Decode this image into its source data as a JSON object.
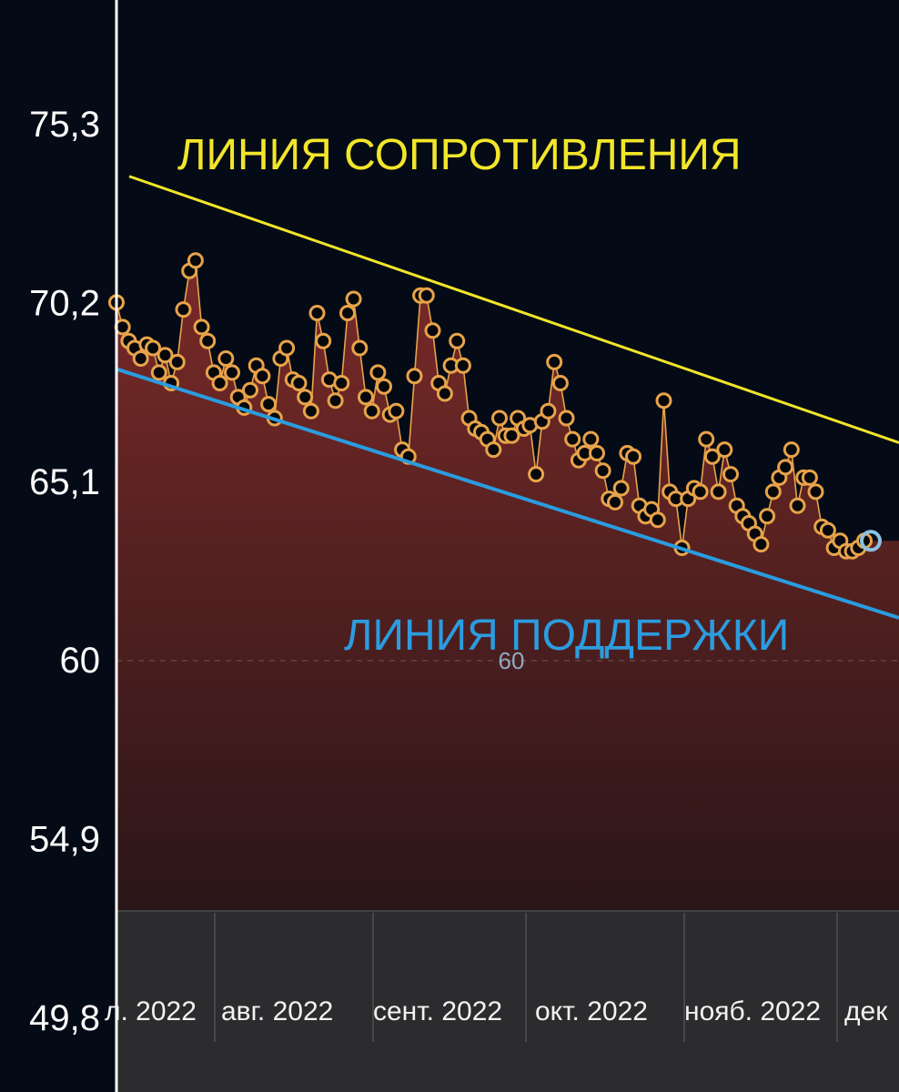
{
  "chart_data": {
    "type": "line",
    "y_ticks": [
      "75,3",
      "70,2",
      "65,1",
      "60",
      "54,9",
      "49,8"
    ],
    "y_tick_values": [
      75.3,
      70.2,
      65.1,
      60.0,
      54.9,
      49.8
    ],
    "reference_line": {
      "value": 60,
      "label": "60"
    },
    "x_labels": [
      "л. 2022",
      "авг. 2022",
      "сент. 2022",
      "окт. 2022",
      "нояб. 2022",
      "дек"
    ],
    "annotations": {
      "resistance": "ЛИНИЯ СОПРОТИВЛЕНИЯ",
      "support": "ЛИНИЯ ПОДДЕРЖКИ"
    },
    "trend_lines": {
      "resistance": {
        "start": 73.8,
        "end": 66.2
      },
      "support": {
        "start": 68.3,
        "end": 61.2
      }
    },
    "last_value": 63.4,
    "series": [
      {
        "values": [
          70.2,
          69.5,
          69.1,
          68.9,
          68.6,
          69.0,
          68.9,
          68.2,
          68.7,
          67.9,
          68.5,
          70.0,
          71.1,
          71.4,
          69.5,
          69.1,
          68.2,
          67.9,
          68.6,
          68.2,
          67.5,
          67.2,
          67.7,
          68.4,
          68.1,
          67.3,
          66.9,
          68.6,
          68.9,
          68.0,
          67.9,
          67.5,
          67.1,
          69.9,
          69.1,
          68.0,
          67.4,
          67.9,
          69.9,
          70.3,
          68.9,
          67.5,
          67.1,
          68.2,
          67.8,
          67.0,
          67.1,
          66.0,
          65.8,
          68.1,
          70.4,
          70.4,
          69.4,
          67.9,
          67.6,
          68.4,
          69.1,
          68.4,
          66.9,
          66.6,
          66.5,
          66.3,
          66.0,
          66.9,
          66.4,
          66.4,
          66.9,
          66.6,
          66.7,
          65.3,
          66.8,
          67.1,
          68.5,
          67.9,
          66.9,
          66.3,
          65.7,
          65.9,
          66.3,
          65.9,
          65.4,
          64.6,
          64.5,
          64.9,
          65.9,
          65.8,
          64.4,
          64.1,
          64.3,
          64.0,
          67.4,
          64.8,
          64.6,
          63.2,
          64.6,
          64.9,
          64.8,
          66.3,
          65.8,
          64.8,
          66.0,
          65.3,
          64.4,
          64.1,
          63.9,
          63.6,
          63.3,
          64.1,
          64.8,
          65.2,
          65.5,
          66.0,
          64.4,
          65.2,
          65.2,
          64.8,
          63.8,
          63.7,
          63.2,
          63.4,
          63.1,
          63.1,
          63.2,
          63.4
        ]
      }
    ],
    "ylim": [
      49.8,
      77.5
    ]
  }
}
